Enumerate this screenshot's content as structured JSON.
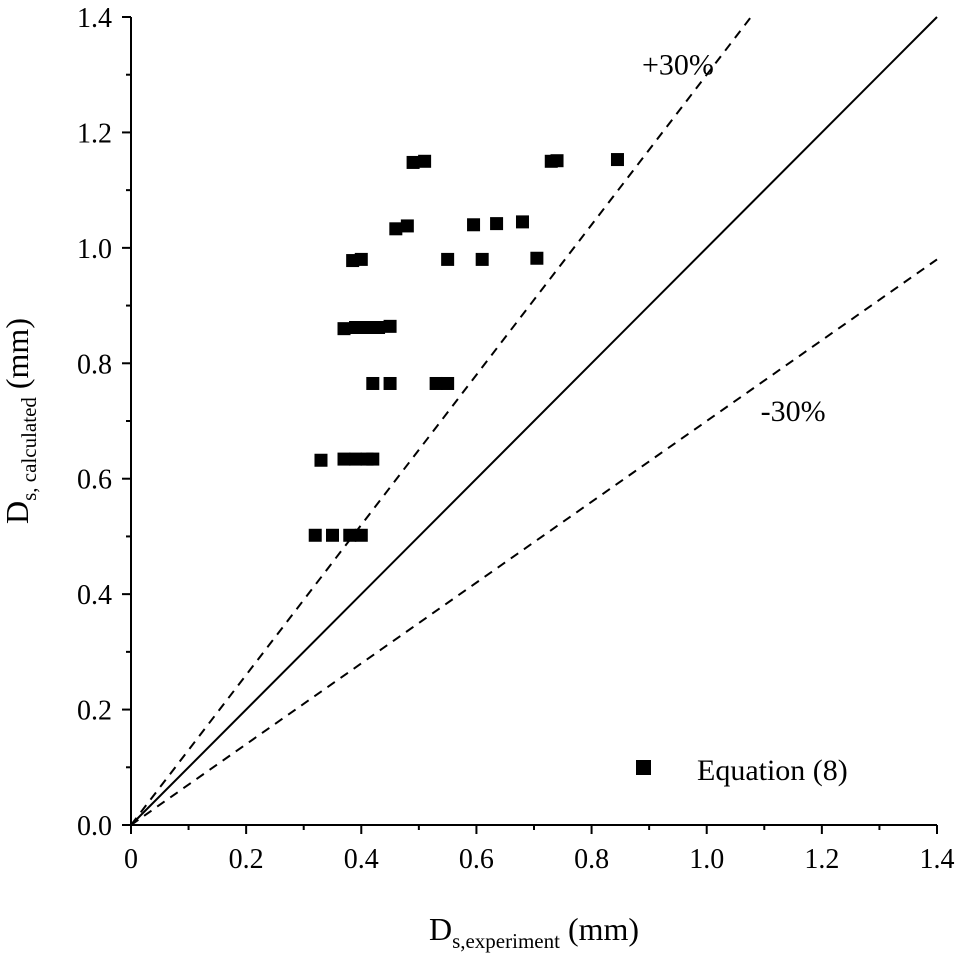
{
  "chart_data": {
    "type": "scatter",
    "x_ticks": [
      "0",
      "0.2",
      "0.4",
      "0.6",
      "0.8",
      "1.0",
      "1.2",
      "1.4"
    ],
    "y_ticks": [
      "0.0",
      "0.2",
      "0.4",
      "0.6",
      "0.8",
      "1.0",
      "1.2",
      "1.4"
    ],
    "xlim": [
      0,
      1.4
    ],
    "ylim": [
      0,
      1.4
    ],
    "xlabel": {
      "main": "D",
      "sub": "s,experiment",
      "unit": " (mm)"
    },
    "ylabel": {
      "main": "D",
      "sub": "s, calculated",
      "unit": " (mm)"
    },
    "grid": false,
    "legend": {
      "label": "Equation (8)",
      "position": "bottom-right"
    },
    "reference_lines": [
      {
        "name": "parity",
        "label": "",
        "factor": 1.0,
        "style": "solid"
      },
      {
        "name": "plus-30",
        "label": "+30%",
        "factor": 1.3,
        "style": "dashed",
        "label_at": [
          0.95,
          1.3
        ]
      },
      {
        "name": "minus-30",
        "label": "-30%",
        "factor": 0.7,
        "style": "dashed",
        "label_at": [
          1.15,
          0.7
        ]
      }
    ],
    "series": [
      {
        "name": "Equation (8)",
        "marker": "square",
        "points": [
          [
            0.32,
            0.502
          ],
          [
            0.35,
            0.502
          ],
          [
            0.38,
            0.502
          ],
          [
            0.4,
            0.502
          ],
          [
            0.33,
            0.632
          ],
          [
            0.37,
            0.634
          ],
          [
            0.39,
            0.634
          ],
          [
            0.41,
            0.634
          ],
          [
            0.42,
            0.634
          ],
          [
            0.42,
            0.765
          ],
          [
            0.45,
            0.765
          ],
          [
            0.53,
            0.765
          ],
          [
            0.55,
            0.765
          ],
          [
            0.37,
            0.86
          ],
          [
            0.39,
            0.862
          ],
          [
            0.41,
            0.862
          ],
          [
            0.43,
            0.862
          ],
          [
            0.45,
            0.864
          ],
          [
            0.385,
            0.978
          ],
          [
            0.4,
            0.98
          ],
          [
            0.55,
            0.98
          ],
          [
            0.61,
            0.98
          ],
          [
            0.705,
            0.982
          ],
          [
            0.46,
            1.033
          ],
          [
            0.48,
            1.038
          ],
          [
            0.595,
            1.04
          ],
          [
            0.635,
            1.042
          ],
          [
            0.68,
            1.045
          ],
          [
            0.49,
            1.148
          ],
          [
            0.51,
            1.15
          ],
          [
            0.73,
            1.15
          ],
          [
            0.74,
            1.151
          ],
          [
            0.845,
            1.153
          ]
        ]
      }
    ]
  }
}
